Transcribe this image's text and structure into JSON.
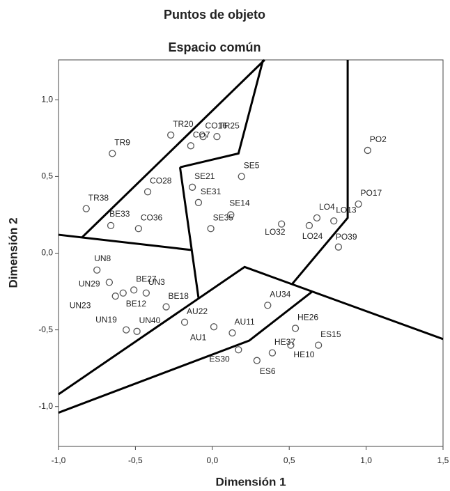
{
  "chart_data": {
    "type": "scatter",
    "title": "Puntos de objeto",
    "subtitle": "Espacio común",
    "x_label": "Dimensión 1",
    "y_label": "Dimensión 2",
    "xlim": [
      -1.0,
      1.5
    ],
    "ylim": [
      -1.26,
      1.26
    ],
    "xticks": [
      {
        "value": -1.0,
        "label": "-1,0"
      },
      {
        "value": -0.5,
        "label": "-0,5"
      },
      {
        "value": 0,
        "label": "0,0"
      },
      {
        "value": 0.5,
        "label": "0,5"
      },
      {
        "value": 1.0,
        "label": "1,0"
      },
      {
        "value": 1.5,
        "label": "1,5"
      }
    ],
    "yticks": [
      {
        "value": -1.0,
        "label": "-1,0"
      },
      {
        "value": -0.5,
        "label": "-0,5"
      },
      {
        "value": 0,
        "label": "0,0"
      },
      {
        "value": 0.5,
        "label": "0,5"
      },
      {
        "value": 1.0,
        "label": "1,0"
      }
    ],
    "marker_color": "#555555",
    "line_color": "#000000",
    "labels": [
      "TR9",
      "TR20",
      "CO16",
      "TR25",
      "CO7",
      "PO2",
      "SE21",
      "SE5",
      "SE31",
      "CO28",
      "TR38",
      "BE33",
      "CO36",
      "SE14",
      "SE35",
      "LO32",
      "LO4",
      "LO13",
      "LO24",
      "PO17",
      "PO39",
      "UN8",
      "BE27",
      "UN3",
      "UN29",
      "UN23",
      "BE12",
      "BE18",
      "UN19",
      "UN40",
      "AU22",
      "AU1",
      "AU11",
      "AU34",
      "ES30",
      "ES6",
      "HE37",
      "HE26",
      "HE10",
      "ES15"
    ],
    "x": [
      -0.65,
      -0.27,
      -0.06,
      0.03,
      -0.14,
      1.01,
      -0.13,
      0.19,
      -0.09,
      -0.42,
      -0.82,
      -0.66,
      -0.48,
      0.12,
      -0.01,
      0.45,
      0.68,
      0.79,
      0.63,
      0.95,
      0.82,
      -0.75,
      -0.51,
      -0.43,
      -0.67,
      -0.63,
      -0.58,
      -0.3,
      -0.56,
      -0.49,
      -0.18,
      0.01,
      0.13,
      0.36,
      0.17,
      0.29,
      0.39,
      0.54,
      0.51,
      0.69
    ],
    "y": [
      0.65,
      0.77,
      0.76,
      0.76,
      0.7,
      0.67,
      0.43,
      0.5,
      0.33,
      0.4,
      0.29,
      0.18,
      0.16,
      0.25,
      0.16,
      0.19,
      0.23,
      0.21,
      0.18,
      0.32,
      0.04,
      -0.11,
      -0.24,
      -0.26,
      -0.19,
      -0.28,
      -0.26,
      -0.35,
      -0.5,
      -0.51,
      -0.45,
      -0.48,
      -0.52,
      -0.34,
      -0.63,
      -0.7,
      -0.65,
      -0.49,
      -0.6,
      -0.6
    ],
    "boundaries": [
      {
        "x": [
          -0.85,
          0.34
        ],
        "y": [
          0.1,
          1.26
        ]
      },
      {
        "x": [
          -1.0,
          -0.13
        ],
        "y": [
          0.12,
          0.02
        ]
      },
      {
        "x": [
          -0.21,
          0.17,
          0.33
        ],
        "y": [
          0.56,
          0.65,
          1.26
        ]
      },
      {
        "x": [
          -0.21,
          -0.09
        ],
        "y": [
          0.56,
          -0.29
        ]
      },
      {
        "x": [
          -1.0,
          0.21,
          1.5
        ],
        "y": [
          -0.92,
          -0.09,
          -0.56
        ]
      },
      {
        "x": [
          0.52,
          0.88,
          0.88
        ],
        "y": [
          -0.2,
          0.23,
          1.26
        ]
      },
      {
        "x": [
          -1.0,
          0.24,
          0.65
        ],
        "y": [
          -1.04,
          -0.57,
          -0.25
        ]
      }
    ]
  }
}
